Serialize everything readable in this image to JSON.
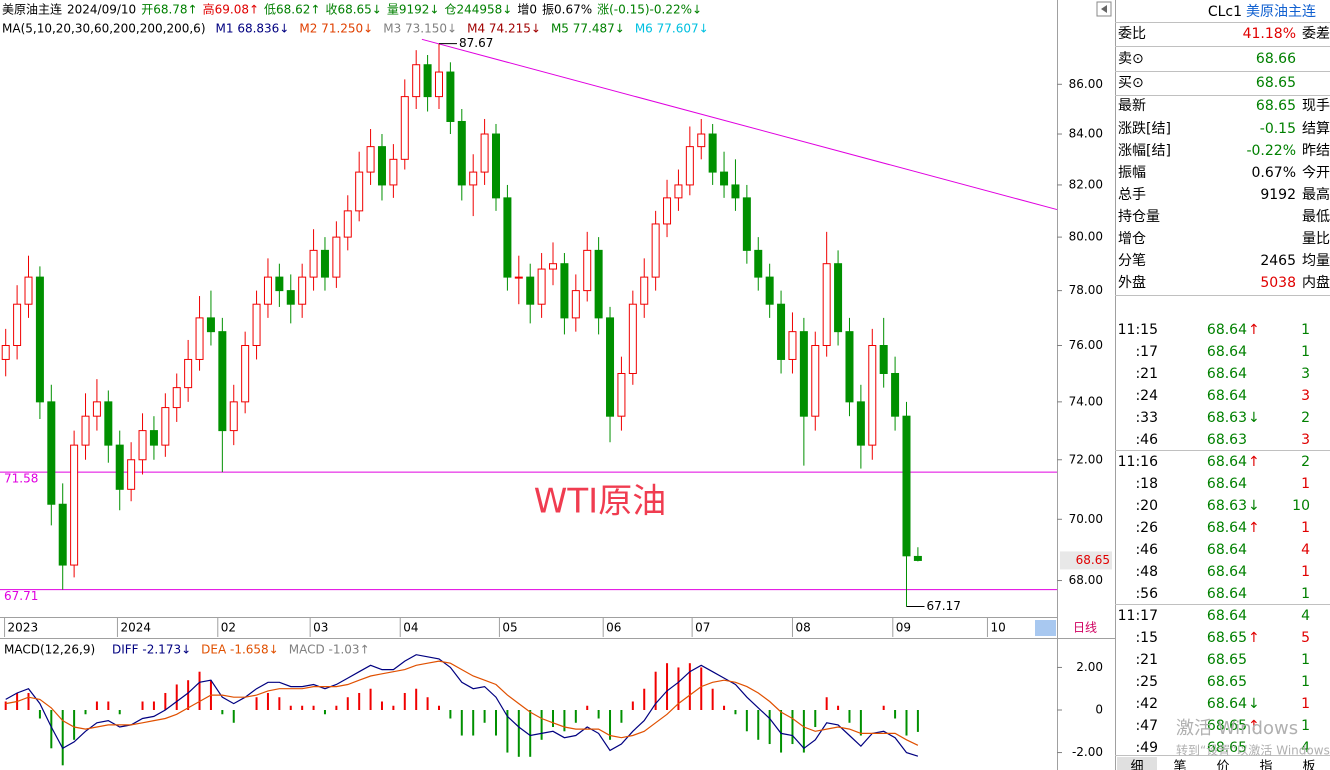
{
  "chart_data": [
    {
      "type": "candlestick",
      "log_scale": true,
      "header": [
        {
          "text": "美原油主连",
          "color": "#000000"
        },
        {
          "text": "2024/09/10",
          "color": "#000000"
        },
        {
          "text": "开68.78↑",
          "color": "#008000"
        },
        {
          "text": "高69.08↑",
          "color": "#e00000"
        },
        {
          "text": "低68.62↑",
          "color": "#008000"
        },
        {
          "text": "收68.65↓",
          "color": "#008000"
        },
        {
          "text": "量9192↓",
          "color": "#008000"
        },
        {
          "text": "仓244958↓",
          "color": "#008000"
        },
        {
          "text": "增0",
          "color": "#000000"
        },
        {
          "text": "振0.67%",
          "color": "#000000"
        },
        {
          "text": "涨(-0.15)-0.22%↓",
          "color": "#008000"
        }
      ],
      "ma_legend": [
        {
          "text": "MA(5,10,20,30,60,200,200,200,6)",
          "color": "#000000"
        },
        {
          "text": "M1 68.836↓",
          "color": "#000080"
        },
        {
          "text": "M2 71.250↓",
          "color": "#e04000"
        },
        {
          "text": "M3 73.150↓",
          "color": "#808080"
        },
        {
          "text": "M4 74.215↓",
          "color": "#a00000"
        },
        {
          "text": "M5 77.487↓",
          "color": "#008000"
        },
        {
          "text": "M6 77.607↓",
          "color": "#00c0e0"
        }
      ],
      "candles": [
        [
          75.5,
          76.6,
          74.9,
          76.0
        ],
        [
          76.0,
          78.2,
          75.5,
          77.5
        ],
        [
          77.5,
          79.3,
          77.0,
          78.5
        ],
        [
          78.5,
          78.9,
          73.4,
          74.0
        ],
        [
          74.0,
          74.6,
          69.8,
          70.5
        ],
        [
          70.5,
          71.2,
          67.71,
          68.5
        ],
        [
          68.5,
          73.0,
          68.1,
          72.5
        ],
        [
          72.5,
          74.3,
          72.0,
          73.5
        ],
        [
          73.5,
          74.8,
          73.0,
          74.0
        ],
        [
          74.0,
          74.4,
          71.9,
          72.5
        ],
        [
          72.5,
          73.0,
          70.3,
          71.0
        ],
        [
          71.0,
          72.6,
          70.6,
          72.0
        ],
        [
          72.0,
          73.6,
          71.5,
          73.0
        ],
        [
          73.0,
          73.5,
          72.0,
          72.5
        ],
        [
          72.5,
          74.3,
          72.1,
          73.8
        ],
        [
          73.8,
          75.0,
          73.3,
          74.5
        ],
        [
          74.5,
          76.2,
          74.0,
          75.5
        ],
        [
          75.5,
          77.8,
          75.1,
          77.0
        ],
        [
          77.0,
          78.0,
          76.0,
          76.5
        ],
        [
          76.5,
          77.0,
          71.58,
          73.0
        ],
        [
          73.0,
          74.6,
          72.5,
          74.0
        ],
        [
          74.0,
          76.5,
          73.6,
          76.0
        ],
        [
          76.0,
          78.0,
          75.5,
          77.5
        ],
        [
          77.5,
          79.2,
          77.0,
          78.5
        ],
        [
          78.5,
          79.0,
          77.4,
          78.0
        ],
        [
          78.0,
          78.6,
          76.8,
          77.5
        ],
        [
          77.5,
          79.0,
          77.0,
          78.5
        ],
        [
          78.5,
          80.3,
          78.0,
          79.5
        ],
        [
          79.5,
          80.0,
          78.0,
          78.5
        ],
        [
          78.5,
          80.6,
          78.1,
          80.0
        ],
        [
          80.0,
          81.6,
          79.5,
          81.0
        ],
        [
          81.0,
          83.3,
          80.6,
          82.5
        ],
        [
          82.5,
          84.2,
          82.0,
          83.5
        ],
        [
          83.5,
          84.0,
          81.4,
          82.0
        ],
        [
          82.0,
          83.6,
          81.5,
          83.0
        ],
        [
          83.0,
          86.2,
          82.6,
          85.5
        ],
        [
          85.5,
          87.4,
          85.0,
          86.8
        ],
        [
          86.8,
          87.2,
          84.9,
          85.5
        ],
        [
          85.5,
          87.67,
          85.0,
          86.5
        ],
        [
          86.5,
          86.9,
          84.0,
          84.5
        ],
        [
          84.5,
          85.0,
          81.4,
          82.0
        ],
        [
          82.0,
          83.2,
          80.8,
          82.5
        ],
        [
          82.5,
          84.6,
          82.0,
          84.0
        ],
        [
          84.0,
          84.4,
          81.0,
          81.5
        ],
        [
          81.5,
          82.0,
          78.0,
          78.5
        ],
        [
          78.5,
          79.3,
          77.5,
          78.5
        ],
        [
          78.5,
          79.0,
          76.8,
          77.5
        ],
        [
          77.5,
          79.4,
          77.0,
          78.8
        ],
        [
          78.8,
          79.8,
          78.2,
          79.0
        ],
        [
          79.0,
          79.4,
          76.4,
          77.0
        ],
        [
          77.0,
          78.6,
          76.5,
          78.0
        ],
        [
          78.0,
          80.2,
          77.6,
          79.5
        ],
        [
          79.5,
          80.0,
          76.4,
          77.0
        ],
        [
          77.0,
          77.4,
          72.6,
          73.5
        ],
        [
          73.5,
          75.6,
          73.0,
          75.0
        ],
        [
          75.0,
          78.0,
          74.6,
          77.5
        ],
        [
          77.5,
          79.2,
          77.0,
          78.5
        ],
        [
          78.5,
          81.0,
          78.0,
          80.5
        ],
        [
          80.5,
          82.2,
          80.0,
          81.5
        ],
        [
          81.5,
          82.6,
          81.0,
          82.0
        ],
        [
          82.0,
          84.3,
          81.6,
          83.5
        ],
        [
          83.5,
          84.6,
          83.0,
          84.0
        ],
        [
          84.0,
          84.4,
          82.0,
          82.5
        ],
        [
          82.5,
          83.3,
          81.5,
          82.0
        ],
        [
          82.0,
          83.0,
          81.0,
          81.5
        ],
        [
          81.5,
          82.0,
          79.0,
          79.5
        ],
        [
          79.5,
          80.0,
          78.0,
          78.5
        ],
        [
          78.5,
          79.0,
          77.0,
          77.5
        ],
        [
          77.5,
          78.0,
          75.0,
          75.5
        ],
        [
          75.5,
          77.2,
          75.0,
          76.5
        ],
        [
          76.5,
          77.0,
          71.8,
          73.5
        ],
        [
          73.5,
          76.5,
          73.0,
          76.0
        ],
        [
          76.0,
          80.2,
          75.6,
          79.0
        ],
        [
          79.0,
          79.5,
          76.0,
          76.5
        ],
        [
          76.5,
          77.0,
          73.5,
          74.0
        ],
        [
          74.0,
          74.6,
          71.7,
          72.5
        ],
        [
          72.5,
          76.6,
          72.0,
          76.0
        ],
        [
          76.0,
          77.0,
          74.5,
          75.0
        ],
        [
          75.0,
          75.6,
          73.0,
          73.5
        ],
        [
          73.5,
          74.0,
          67.17,
          68.8
        ],
        [
          68.78,
          69.08,
          68.62,
          68.65
        ]
      ],
      "up_color": "#f00000",
      "down_color": "#009000",
      "xlim": [
        -0.5,
        92.2
      ],
      "xticks": [
        {
          "value": -0.1,
          "label": "2023"
        },
        {
          "value": 9.8,
          "label": "2024"
        },
        {
          "value": 18.6,
          "label": "02"
        },
        {
          "value": 26.7,
          "label": "03"
        },
        {
          "value": 34.6,
          "label": "04"
        },
        {
          "value": 43.3,
          "label": "05"
        },
        {
          "value": 52.4,
          "label": "06"
        },
        {
          "value": 60.2,
          "label": "07"
        },
        {
          "value": 69,
          "label": "08"
        },
        {
          "value": 77.8,
          "label": "09"
        },
        {
          "value": 86.1,
          "label": "10"
        }
      ],
      "ylim": [
        66.9,
        89.5
      ],
      "yticks": [
        {
          "value": 68,
          "label": "68.00"
        },
        {
          "value": 70,
          "label": "70.00"
        },
        {
          "value": 72,
          "label": "72.00"
        },
        {
          "value": 74,
          "label": "74.00"
        },
        {
          "value": 76,
          "label": "76.00"
        },
        {
          "value": 78,
          "label": "78.00"
        },
        {
          "value": 80,
          "label": "80.00"
        },
        {
          "value": 82,
          "label": "82.00"
        },
        {
          "value": 84,
          "label": "84.00"
        },
        {
          "value": 86,
          "label": "86.00"
        }
      ],
      "hlines": [
        71.58,
        67.71
      ],
      "hline_color": "#e000e0",
      "high_marker": {
        "x": 38,
        "value": 87.67
      },
      "low_marker": {
        "x": 79,
        "value": 67.17
      },
      "trendline": {
        "x": [
          36.5,
          92.2
        ],
        "y": [
          87.85,
          81.05
        ]
      },
      "trendline_color": "#e000e0",
      "last_price": 68.65,
      "watermark": "WTI原油",
      "period": "日线"
    },
    {
      "type": "macd",
      "title": "MACD(12,26,9)",
      "legend": [
        {
          "text": "DIFF -2.173↓",
          "color": "#000080"
        },
        {
          "text": "DEA -1.658↓",
          "color": "#e05000"
        },
        {
          "text": "MACD -1.03↑",
          "color": "#808080"
        }
      ],
      "diff": [
        0.5,
        0.8,
        1.0,
        0.3,
        -0.8,
        -1.8,
        -1.5,
        -1.0,
        -0.6,
        -0.5,
        -0.8,
        -0.7,
        -0.4,
        -0.3,
        0.0,
        0.4,
        0.8,
        1.3,
        1.4,
        0.6,
        0.3,
        0.6,
        1.0,
        1.3,
        1.3,
        1.1,
        1.1,
        1.2,
        1.0,
        1.2,
        1.5,
        1.8,
        2.1,
        1.9,
        1.9,
        2.3,
        2.6,
        2.5,
        2.4,
        2.0,
        1.3,
        1.0,
        1.1,
        0.6,
        -0.3,
        -0.8,
        -1.2,
        -1.1,
        -1.0,
        -1.3,
        -1.2,
        -0.8,
        -1.1,
        -1.9,
        -1.6,
        -1.0,
        -0.5,
        0.3,
        0.9,
        1.3,
        1.8,
        2.1,
        1.8,
        1.5,
        1.2,
        0.6,
        0.1,
        -0.4,
        -1.1,
        -1.2,
        -1.8,
        -1.4,
        -0.6,
        -0.7,
        -1.2,
        -1.7,
        -1.1,
        -1.0,
        -1.3,
        -2.0,
        -2.173
      ],
      "dea": [
        0.3,
        0.4,
        0.6,
        0.5,
        0.1,
        -0.5,
        -0.8,
        -0.9,
        -0.8,
        -0.7,
        -0.7,
        -0.7,
        -0.6,
        -0.5,
        -0.4,
        -0.2,
        0.1,
        0.4,
        0.7,
        0.7,
        0.6,
        0.6,
        0.7,
        0.9,
        1.0,
        1.0,
        1.0,
        1.1,
        1.1,
        1.1,
        1.2,
        1.4,
        1.6,
        1.7,
        1.8,
        1.9,
        2.1,
        2.2,
        2.3,
        2.2,
        1.9,
        1.6,
        1.4,
        1.2,
        0.7,
        0.3,
        -0.1,
        -0.4,
        -0.6,
        -0.8,
        -0.9,
        -0.9,
        -0.9,
        -1.2,
        -1.3,
        -1.2,
        -1.0,
        -0.6,
        -0.2,
        0.3,
        0.7,
        1.1,
        1.3,
        1.4,
        1.3,
        1.1,
        0.8,
        0.4,
        -0.1,
        -0.4,
        -0.8,
        -1.0,
        -0.9,
        -0.8,
        -0.9,
        -1.1,
        -1.1,
        -1.1,
        -1.1,
        -1.4,
        -1.658
      ],
      "macd": [
        0.4,
        0.8,
        0.8,
        -0.4,
        -1.8,
        -2.6,
        -1.4,
        -0.2,
        0.4,
        0.4,
        -0.2,
        0,
        0.4,
        0.4,
        0.8,
        1.2,
        1.4,
        1.8,
        1.4,
        -0.2,
        -0.6,
        0,
        0.6,
        0.8,
        0.6,
        0.2,
        0.2,
        0.2,
        -0.2,
        0.2,
        0.6,
        0.8,
        1.0,
        0.4,
        0.2,
        0.8,
        1.0,
        0.6,
        0.2,
        -0.4,
        -1.2,
        -1.2,
        -0.6,
        -1.2,
        -2.0,
        -2.2,
        -2.2,
        -1.4,
        -0.8,
        -1.0,
        -0.6,
        0.2,
        -0.4,
        -1.4,
        -0.6,
        0.4,
        1.0,
        1.8,
        2.2,
        2.0,
        2.2,
        2.0,
        1.0,
        0.2,
        -0.2,
        -1.0,
        -1.4,
        -1.6,
        -2.0,
        -1.6,
        -2.0,
        -0.8,
        0.6,
        0.2,
        -0.6,
        -1.2,
        0,
        0.2,
        -0.4,
        -1.2,
        -1.03
      ],
      "diff_color": "#000080",
      "dea_color": "#e05000",
      "up_color": "#f00000",
      "down_color": "#009000",
      "xlim": [
        -0.5,
        92.2
      ],
      "ylim": [
        -2.82,
        3.29
      ],
      "yticks": [
        {
          "value": 2,
          "label": "2.00"
        },
        0,
        {
          "value": -2,
          "label": "-2.00"
        }
      ]
    }
  ],
  "quote": {
    "code": "CLc1",
    "name": "美原油主连",
    "rows": [
      {
        "label": "委比",
        "value": "41.18%",
        "color": "#e00000",
        "right": "委差"
      },
      {
        "label": "卖⊙",
        "value": 68.66,
        "color": "#008000"
      },
      {
        "label": "买⊙",
        "value": 68.65,
        "color": "#008000"
      },
      {
        "label": "最新",
        "value": 68.65,
        "color": "#008000",
        "right": "现手"
      },
      {
        "label": "涨跌[结]",
        "value": -0.15,
        "color": "#008000",
        "right": "结算价"
      },
      {
        "label": "涨幅[结]",
        "value": "-0.22%",
        "color": "#008000",
        "right": "昨结算"
      },
      {
        "label": "振幅",
        "value": "0.67%",
        "color": "#000000",
        "right": "今开"
      },
      {
        "label": "总手",
        "value": 9192,
        "color": "#000000",
        "right": "最高"
      },
      {
        "label": "持仓量",
        "right": "最低"
      },
      {
        "label": "增仓",
        "right": "量比"
      },
      {
        "label": "分笔",
        "value": 2465,
        "color": "#000000",
        "right": "均量"
      },
      {
        "label": "外盘",
        "value": 5038,
        "color": "#e00000",
        "right": "内盘"
      }
    ],
    "price_color": "#008000",
    "ticks": [
      {
        "time": "11:15",
        "price": "68.64",
        "arrow": {
          "text": "↑",
          "color": "#e00000"
        },
        "volume": 1,
        "vol_color": "#008000"
      },
      {
        "time": ":17",
        "price": "68.64",
        "volume": 1,
        "vol_color": "#008000"
      },
      {
        "time": ":21",
        "price": "68.64",
        "volume": 3,
        "vol_color": "#008000"
      },
      {
        "time": ":24",
        "price": "68.64",
        "volume": 3,
        "vol_color": "#e00000"
      },
      {
        "time": ":33",
        "price": "68.63",
        "arrow": {
          "text": "↓",
          "color": "#008000"
        },
        "volume": 2,
        "vol_color": "#008000"
      },
      {
        "time": ":46",
        "price": "68.63",
        "volume": 3,
        "vol_color": "#e00000"
      },
      {
        "time": "11:16",
        "price": "68.64",
        "arrow": {
          "text": "↑",
          "color": "#e00000"
        },
        "volume": 2,
        "vol_color": "#008000"
      },
      {
        "time": ":18",
        "price": "68.64",
        "volume": 1,
        "vol_color": "#e00000"
      },
      {
        "time": ":20",
        "price": "68.63",
        "arrow": {
          "text": "↓",
          "color": "#008000"
        },
        "volume": 10,
        "vol_color": "#008000"
      },
      {
        "time": ":26",
        "price": "68.64",
        "arrow": {
          "text": "↑",
          "color": "#e00000"
        },
        "volume": 1,
        "vol_color": "#e00000"
      },
      {
        "time": ":46",
        "price": "68.64",
        "volume": 4,
        "vol_color": "#e00000"
      },
      {
        "time": ":48",
        "price": "68.64",
        "volume": 1,
        "vol_color": "#e00000"
      },
      {
        "time": ":56",
        "price": "68.64",
        "volume": 1,
        "vol_color": "#008000"
      },
      {
        "time": "11:17",
        "price": "68.64",
        "volume": 4,
        "vol_color": "#008000"
      },
      {
        "time": ":15",
        "price": "68.65",
        "arrow": {
          "text": "↑",
          "color": "#e00000"
        },
        "volume": 5,
        "vol_color": "#e00000"
      },
      {
        "time": ":21",
        "price": "68.65",
        "volume": 1,
        "vol_color": "#008000"
      },
      {
        "time": ":25",
        "price": "68.65",
        "volume": 1,
        "vol_color": "#008000"
      },
      {
        "time": ":42",
        "price": "68.64",
        "arrow": {
          "text": "↓",
          "color": "#008000"
        },
        "volume": 1,
        "vol_color": "#e00000"
      },
      {
        "time": ":47",
        "price": "68.65",
        "arrow": {
          "text": "↑",
          "color": "#e00000"
        },
        "volume": 1,
        "vol_color": "#008000"
      },
      {
        "time": ":49",
        "price": "68.65",
        "volume": 4,
        "vol_color": "#008000"
      }
    ],
    "tabs": [
      "细",
      "笔",
      "价",
      "指",
      "板"
    ]
  },
  "os_watermark": [
    "激活 Windows",
    "转到“设置”以激活 Windows。"
  ]
}
